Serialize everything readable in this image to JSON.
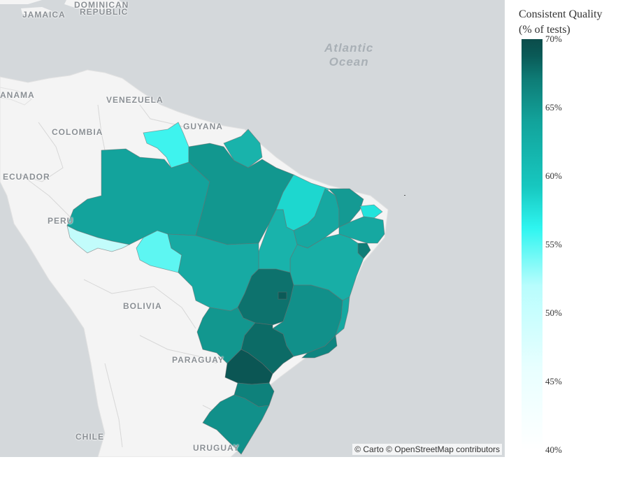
{
  "map": {
    "country_labels": [
      "JAMAICA",
      "DOMINICAN",
      "REPUBLIC",
      "ANAMA",
      "VENEZUELA",
      "GUYANA",
      "COLOMBIA",
      "ECUADOR",
      "PERU",
      "BOLIVIA",
      "PARAGUAY",
      "CHILE",
      "URUGUAY"
    ],
    "ocean_label": [
      "Atlantic",
      "Ocean"
    ],
    "attribution": "© Carto © OpenStreetMap contributors"
  },
  "legend": {
    "title_line1": "Consistent Quality",
    "title_line2": "(% of tests)",
    "ticks": [
      "70%",
      "65%",
      "60%",
      "55%",
      "50%",
      "45%",
      "40%"
    ],
    "min": 40,
    "max": 70
  },
  "states": [
    {
      "name": "Amazonas",
      "value": 60.5,
      "color": "#13a39c"
    },
    {
      "name": "Roraima",
      "value": 53.5,
      "color": "#3ef3ee"
    },
    {
      "name": "Amapá",
      "value": 59.0,
      "color": "#19b3ab"
    },
    {
      "name": "Pará",
      "value": 61.5,
      "color": "#12978f"
    },
    {
      "name": "Maranhão",
      "value": 56.5,
      "color": "#1dd7cf"
    },
    {
      "name": "Piauí",
      "value": 59.5,
      "color": "#16a8a1"
    },
    {
      "name": "Ceará",
      "value": 61.0,
      "color": "#149a93"
    },
    {
      "name": "Rio Grande do Norte",
      "value": 55.5,
      "color": "#22e3dc"
    },
    {
      "name": "Paraíba / Pernambuco / Alagoas",
      "value": 60.0,
      "color": "#16a8a1"
    },
    {
      "name": "Sergipe",
      "value": 64.5,
      "color": "#0e7d77"
    },
    {
      "name": "Bahia",
      "value": 59.5,
      "color": "#18aea6"
    },
    {
      "name": "Tocantins",
      "value": 59.0,
      "color": "#19b3ab"
    },
    {
      "name": "Acre",
      "value": 48.0,
      "color": "#c2fcfb"
    },
    {
      "name": "Rondônia",
      "value": 52.5,
      "color": "#5df6f2"
    },
    {
      "name": "Mato Grosso",
      "value": 59.5,
      "color": "#17aaa3"
    },
    {
      "name": "Goiás",
      "value": 65.5,
      "color": "#0d726d"
    },
    {
      "name": "Distrito Federal",
      "value": 68.0,
      "color": "#0b5a57"
    },
    {
      "name": "Minas Gerais",
      "value": 62.5,
      "color": "#11908a"
    },
    {
      "name": "Espírito Santo",
      "value": 60.0,
      "color": "#16a8a1"
    },
    {
      "name": "Mato Grosso do Sul",
      "value": 61.5,
      "color": "#12978f"
    },
    {
      "name": "São Paulo",
      "value": 66.0,
      "color": "#0c6b66"
    },
    {
      "name": "Rio de Janeiro",
      "value": 63.5,
      "color": "#0f8580"
    },
    {
      "name": "Paraná",
      "value": 68.5,
      "color": "#0b5654"
    },
    {
      "name": "Santa Catarina",
      "value": 64.0,
      "color": "#0e817b"
    },
    {
      "name": "Rio Grande do Sul",
      "value": 62.5,
      "color": "#11908a"
    }
  ]
}
